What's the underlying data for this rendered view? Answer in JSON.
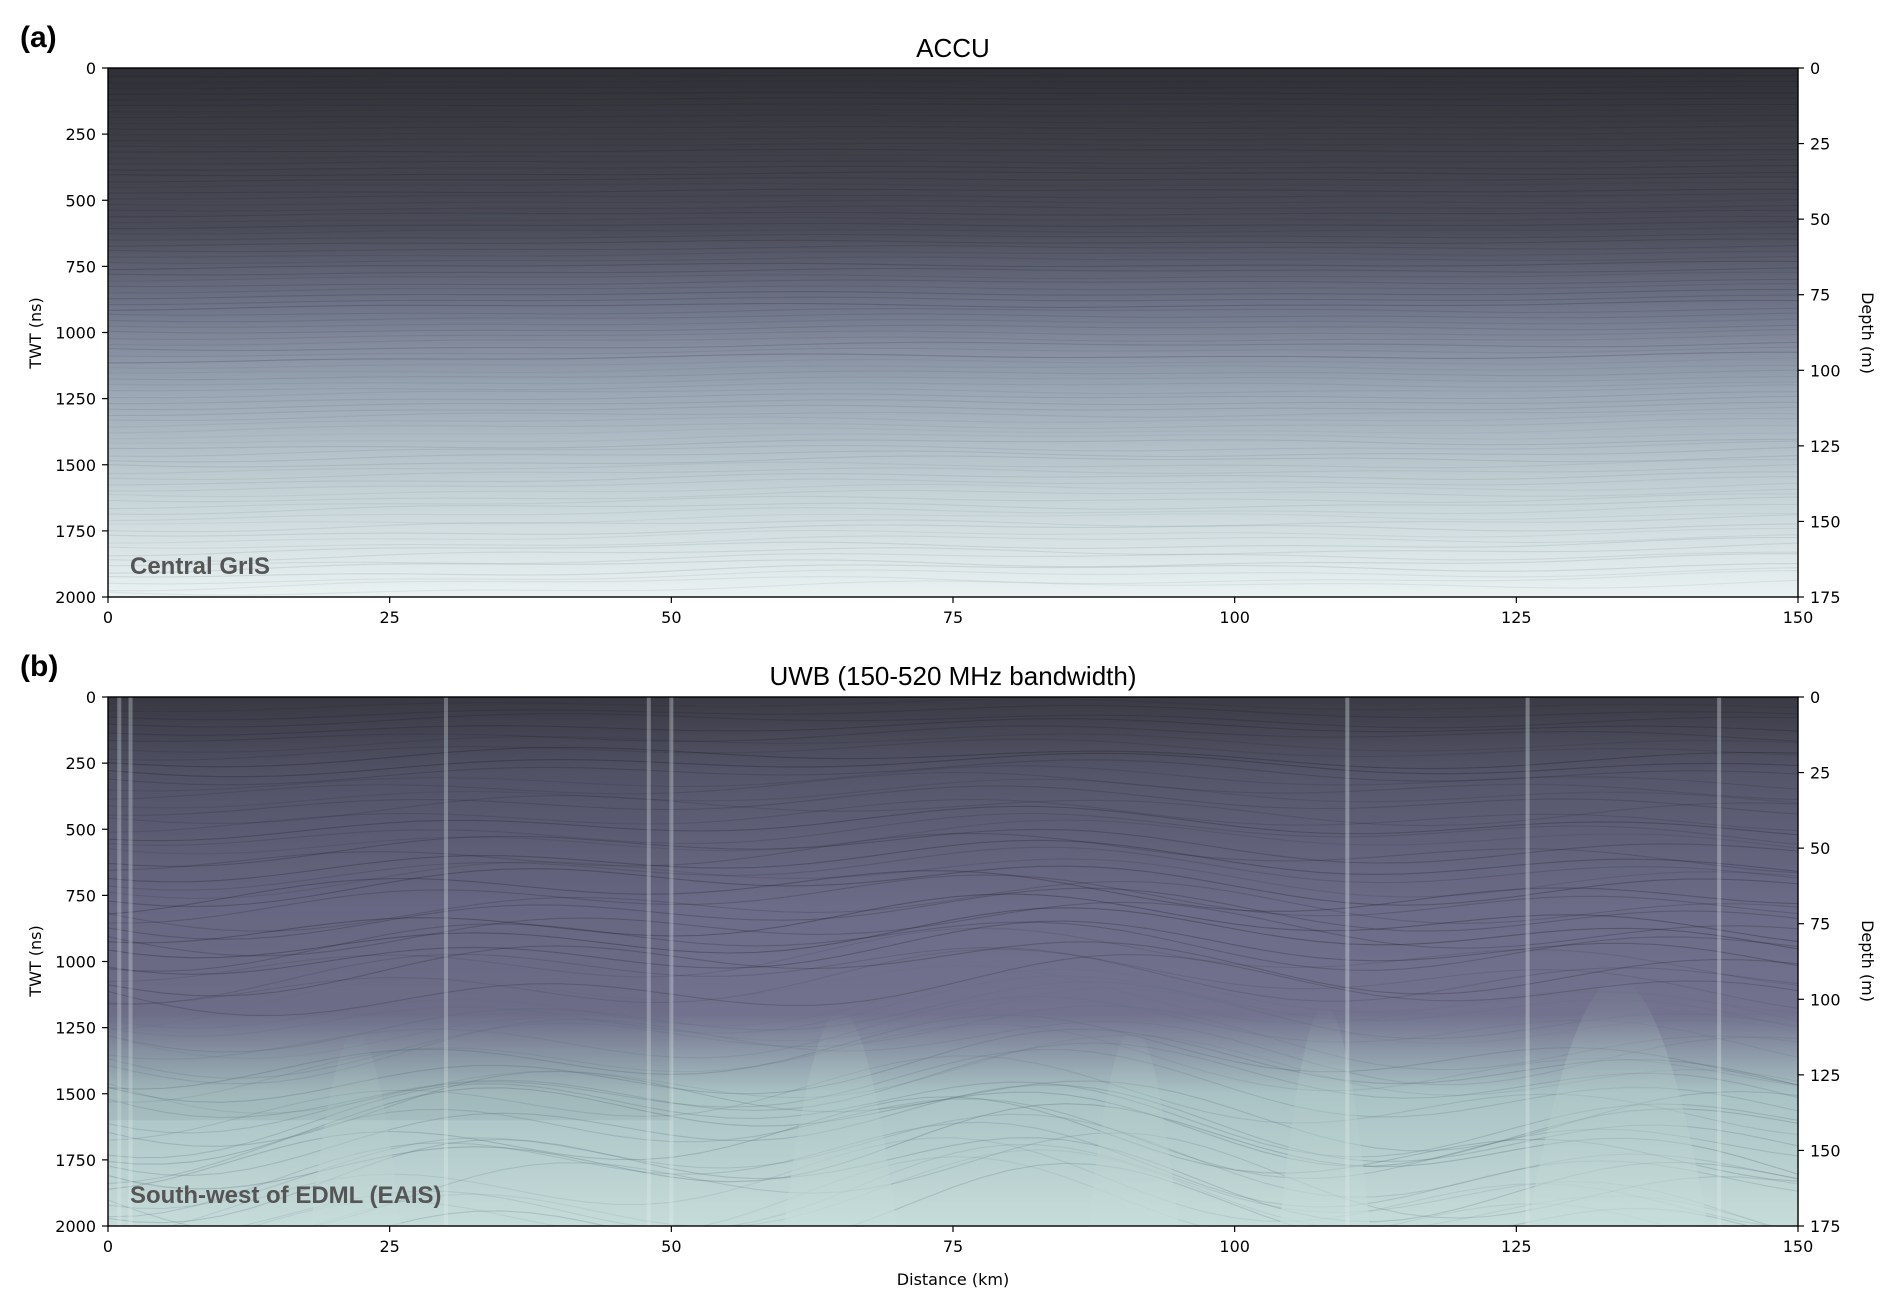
{
  "chart_data": [
    {
      "type": "heatmap",
      "panel_label": "(a)",
      "title": "ACCU",
      "region_label": "Central GrIS",
      "xlabel": "",
      "ylabel": "TWT (ns)",
      "ylabel_right": "Depth (m)",
      "xlim": [
        0,
        150
      ],
      "ylim": [
        2000,
        0
      ],
      "ylim_right": [
        175,
        0
      ],
      "xticks": [
        0,
        25,
        50,
        75,
        100,
        125,
        150
      ],
      "yticks": [
        0,
        250,
        500,
        750,
        1000,
        1250,
        1500,
        1750,
        2000
      ],
      "yticks_right": [
        0,
        25,
        50,
        75,
        100,
        125,
        150,
        175
      ],
      "colors": {
        "top": "#3a3a42",
        "mid": "#7d8398",
        "bottom": "#e8f0f0"
      }
    },
    {
      "type": "heatmap",
      "panel_label": "(b)",
      "title": "UWB (150-520 MHz bandwidth)",
      "region_label": "South-west of EDML (EAIS)",
      "xlabel": "Distance (km)",
      "ylabel": "TWT (ns)",
      "ylabel_right": "Depth (m)",
      "xlim": [
        0,
        150
      ],
      "ylim": [
        2000,
        0
      ],
      "ylim_right": [
        175,
        0
      ],
      "xticks": [
        0,
        25,
        50,
        75,
        100,
        125,
        150
      ],
      "yticks": [
        0,
        250,
        500,
        750,
        1000,
        1250,
        1500,
        1750,
        2000
      ],
      "yticks_right": [
        0,
        25,
        50,
        75,
        100,
        125,
        150,
        175
      ],
      "colors": {
        "top": "#3e3e4a",
        "mid": "#6f6f8c",
        "bottom": "#bcd6d4"
      }
    }
  ]
}
